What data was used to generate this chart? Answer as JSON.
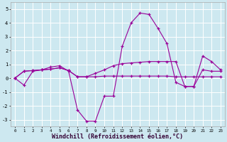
{
  "xlabel": "Windchill (Refroidissement éolien,°C)",
  "background_color": "#cde8f0",
  "line_color": "#990099",
  "grid_color": "#ffffff",
  "x": [
    0,
    1,
    2,
    3,
    4,
    5,
    6,
    7,
    8,
    9,
    10,
    11,
    12,
    13,
    14,
    15,
    16,
    17,
    18,
    19,
    20,
    21,
    22,
    23
  ],
  "line1": [
    0.0,
    -0.5,
    0.5,
    0.6,
    0.8,
    0.9,
    0.5,
    -2.3,
    -3.1,
    -3.1,
    -1.3,
    -1.3,
    2.3,
    4.0,
    4.7,
    4.6,
    3.6,
    2.5,
    -0.3,
    -0.6,
    -0.6,
    0.6,
    0.5,
    0.5
  ],
  "line2": [
    0.0,
    0.5,
    0.55,
    0.6,
    0.65,
    0.75,
    0.55,
    0.1,
    0.1,
    0.35,
    0.6,
    0.9,
    1.05,
    1.1,
    1.15,
    1.2,
    1.2,
    1.2,
    1.2,
    -0.6,
    -0.6,
    1.6,
    1.2,
    0.6
  ],
  "line3": [
    0.0,
    0.5,
    0.55,
    0.6,
    0.65,
    0.75,
    0.55,
    0.1,
    0.1,
    0.1,
    0.15,
    0.15,
    0.15,
    0.15,
    0.15,
    0.15,
    0.15,
    0.15,
    0.1,
    0.1,
    0.1,
    0.1,
    0.1,
    0.1
  ],
  "ylim": [
    -3.5,
    5.5
  ],
  "xlim": [
    -0.5,
    23.5
  ],
  "yticks": [
    -3,
    -2,
    -1,
    0,
    1,
    2,
    3,
    4,
    5
  ],
  "xticks": [
    0,
    1,
    2,
    3,
    4,
    5,
    6,
    7,
    8,
    9,
    10,
    11,
    12,
    13,
    14,
    15,
    16,
    17,
    18,
    19,
    20,
    21,
    22,
    23
  ],
  "tick_fontsize": 5.0,
  "xtick_fontsize": 4.2,
  "xlabel_fontsize": 6.0
}
